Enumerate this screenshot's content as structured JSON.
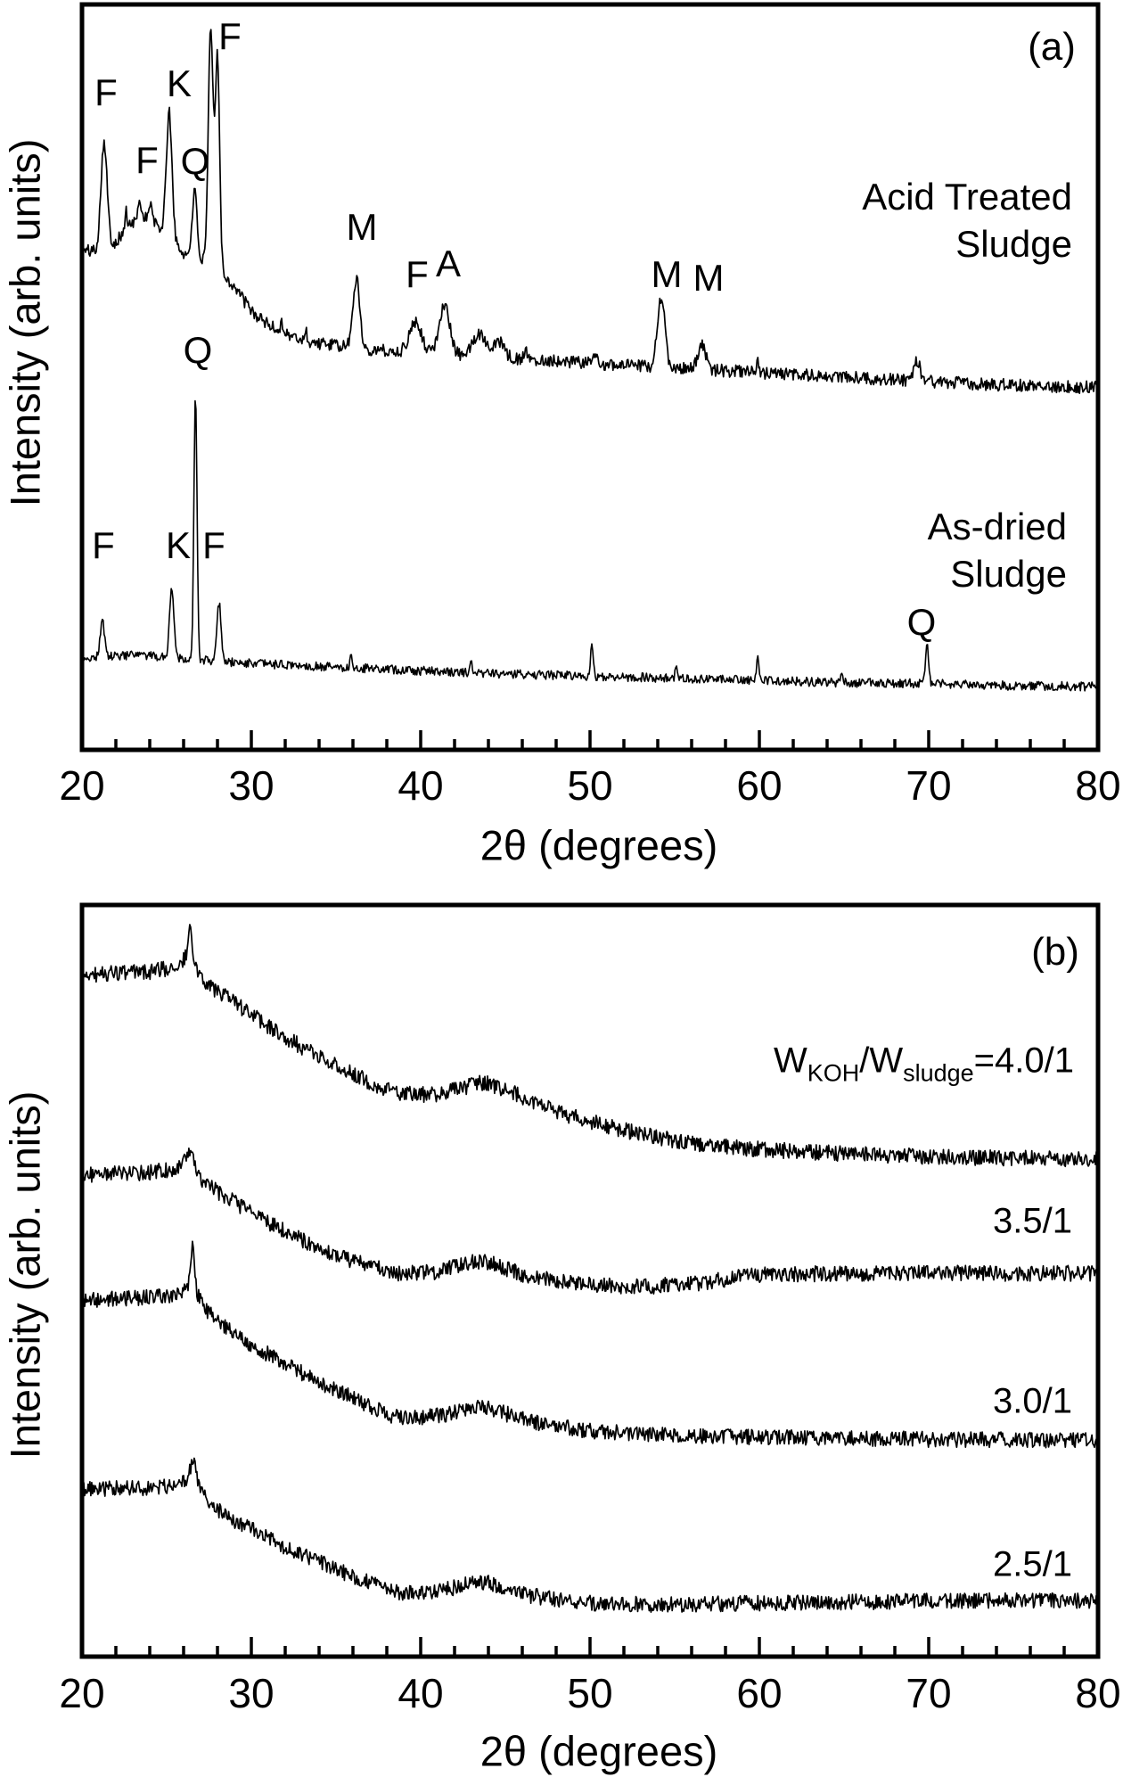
{
  "chart_data": [
    {
      "type": "line",
      "panel": "a",
      "tag": "(a)",
      "xlabel": "2θ (degrees)",
      "ylabel": "Intensity (arb. units)",
      "xlim": [
        20,
        80
      ],
      "x_ticks": [
        20,
        30,
        40,
        50,
        60,
        70,
        80
      ],
      "x_tick_labels": [
        "20",
        "30",
        "40",
        "50",
        "60",
        "70",
        "80"
      ],
      "x_minor_tick_step": 2,
      "ylim": [
        0,
        100
      ],
      "y_units": "arbitrary intensity (0-100 of panel height)",
      "grid": false,
      "legend_position": "labels beside traces",
      "series": [
        {
          "name": "Acid Treated Sludge",
          "label_lines": [
            "Acid Treated",
            "Sludge"
          ],
          "noise": 0.85,
          "seed": 101,
          "baseline": [
            [
              20,
              66.9
            ],
            [
              21.3,
              67.1
            ],
            [
              22,
              68.1
            ],
            [
              23,
              70.1
            ],
            [
              23.8,
              70.7
            ],
            [
              24.5,
              69.3
            ],
            [
              25.2,
              68.1
            ],
            [
              26,
              66.5
            ],
            [
              26.7,
              65.7
            ],
            [
              27.7,
              65.0
            ],
            [
              29,
              62.3
            ],
            [
              30,
              58.7
            ],
            [
              31.5,
              56.3
            ],
            [
              33,
              54.9
            ],
            [
              35,
              54.2
            ],
            [
              38,
              53.5
            ],
            [
              42,
              53.0
            ],
            [
              45,
              52.6
            ],
            [
              48,
              52.2
            ],
            [
              52,
              51.6
            ],
            [
              56,
              51.1
            ],
            [
              60,
              50.6
            ],
            [
              65,
              50.0
            ],
            [
              70,
              49.4
            ],
            [
              75,
              48.9
            ],
            [
              80,
              48.6
            ]
          ],
          "peaks": [
            {
              "x": 21.3,
              "h": 14.4,
              "w": 0.18,
              "label": "F"
            },
            {
              "x": 23.8,
              "h": 1.2,
              "w": 0.8,
              "label": "F"
            },
            {
              "x": 25.15,
              "h": 17.0,
              "w": 0.17,
              "label": "K"
            },
            {
              "x": 26.65,
              "h": 9.0,
              "w": 0.15,
              "label": "Q"
            },
            {
              "x": 27.6,
              "h": 31.7,
              "w": 0.14,
              "label": "F"
            },
            {
              "x": 28.0,
              "h": 28.7,
              "w": 0.13,
              "label": ""
            },
            {
              "x": 36.2,
              "h": 9.3,
              "w": 0.2,
              "label": "M"
            },
            {
              "x": 39.7,
              "h": 4.2,
              "w": 0.35,
              "label": "F"
            },
            {
              "x": 41.4,
              "h": 6.8,
              "w": 0.3,
              "label": "A"
            },
            {
              "x": 43.5,
              "h": 3.0,
              "w": 0.4,
              "label": ""
            },
            {
              "x": 44.6,
              "h": 2.2,
              "w": 0.3,
              "label": ""
            },
            {
              "x": 54.2,
              "h": 9.3,
              "w": 0.22,
              "label": "M"
            },
            {
              "x": 56.6,
              "h": 3.5,
              "w": 0.22,
              "label": "M"
            },
            {
              "x": 69.3,
              "h": 2.6,
              "w": 0.2,
              "label": ""
            },
            {
              "x": 22.6,
              "h": 2.5,
              "w": 0.07,
              "label": ""
            },
            {
              "x": 23.4,
              "h": 2.8,
              "w": 0.07,
              "label": ""
            },
            {
              "x": 24.05,
              "h": 2.2,
              "w": 0.07,
              "label": ""
            },
            {
              "x": 31.8,
              "h": 1.6,
              "w": 0.07,
              "label": ""
            },
            {
              "x": 33.2,
              "h": 1.5,
              "w": 0.07,
              "label": ""
            },
            {
              "x": 46.2,
              "h": 1.2,
              "w": 0.08,
              "label": ""
            },
            {
              "x": 50.3,
              "h": 1.5,
              "w": 0.08,
              "label": ""
            },
            {
              "x": 59.9,
              "h": 1.3,
              "w": 0.08,
              "label": ""
            }
          ]
        },
        {
          "name": "As-dried Sludge",
          "label_lines": [
            "As-dried",
            "Sludge"
          ],
          "noise": 0.6,
          "seed": 202,
          "baseline": [
            [
              20,
              12.3
            ],
            [
              23,
              12.7
            ],
            [
              26,
              12.3
            ],
            [
              28,
              11.8
            ],
            [
              30,
              11.6
            ],
            [
              35,
              11.1
            ],
            [
              40,
              10.6
            ],
            [
              45,
              10.2
            ],
            [
              50,
              9.9
            ],
            [
              55,
              9.6
            ],
            [
              60,
              9.3
            ],
            [
              65,
              9.0
            ],
            [
              70,
              8.9
            ],
            [
              75,
              8.6
            ],
            [
              80,
              8.5
            ]
          ],
          "peaks": [
            {
              "x": 21.2,
              "h": 5.1,
              "w": 0.12,
              "label": "F"
            },
            {
              "x": 25.3,
              "h": 9.2,
              "w": 0.13,
              "label": "K"
            },
            {
              "x": 26.7,
              "h": 35.5,
              "w": 0.09,
              "label": "Q"
            },
            {
              "x": 28.1,
              "h": 8.0,
              "w": 0.12,
              "label": "F"
            },
            {
              "x": 50.1,
              "h": 3.9,
              "w": 0.08,
              "label": ""
            },
            {
              "x": 59.9,
              "h": 3.0,
              "w": 0.08,
              "label": ""
            },
            {
              "x": 69.9,
              "h": 5.0,
              "w": 0.09,
              "label": "Q"
            },
            {
              "x": 35.9,
              "h": 1.6,
              "w": 0.07,
              "label": ""
            },
            {
              "x": 43.0,
              "h": 1.2,
              "w": 0.07,
              "label": ""
            },
            {
              "x": 55.1,
              "h": 1.4,
              "w": 0.07,
              "label": ""
            },
            {
              "x": 64.9,
              "h": 1.2,
              "w": 0.07,
              "label": ""
            }
          ]
        }
      ]
    },
    {
      "type": "line",
      "panel": "b",
      "tag": "(b)",
      "xlabel": "2θ (degrees)",
      "ylabel": "Intensity (arb. units)",
      "xlim": [
        20,
        80
      ],
      "x_ticks": [
        20,
        30,
        40,
        50,
        60,
        70,
        80
      ],
      "x_tick_labels": [
        "20",
        "30",
        "40",
        "50",
        "60",
        "70",
        "80"
      ],
      "x_minor_tick_step": 2,
      "ylim": [
        0,
        100
      ],
      "y_units": "arbitrary intensity (0-100 of panel height)",
      "grid": false,
      "legend_position": "labels beside traces",
      "series": [
        {
          "name": "W_KOH/W_sludge = 4.0/1",
          "ratio": "4.0/1",
          "label_parts": {
            "w1": "W",
            "sub1": "KOH",
            "w2": "/W",
            "sub2": "sludge",
            "eq": "=4.0/1"
          },
          "noise": 1.05,
          "seed": 303,
          "baseline": [
            [
              20,
              90.7
            ],
            [
              24,
              91.1
            ],
            [
              26.3,
              92.1
            ],
            [
              27.2,
              89.9
            ],
            [
              28,
              88.5
            ],
            [
              30,
              85.4
            ],
            [
              32,
              82.4
            ],
            [
              34,
              79.8
            ],
            [
              36,
              77.5
            ],
            [
              38.5,
              74.9
            ],
            [
              41,
              74.7
            ],
            [
              43.7,
              76.5
            ],
            [
              46,
              74.5
            ],
            [
              48,
              72.5
            ],
            [
              50,
              71.2
            ],
            [
              53,
              69.5
            ],
            [
              56,
              68.3
            ],
            [
              60,
              67.5
            ],
            [
              65,
              66.9
            ],
            [
              70,
              66.5
            ],
            [
              75,
              66.3
            ],
            [
              80,
              66.2
            ]
          ],
          "peaks": [
            {
              "x": 26.35,
              "h": 2.2,
              "w": 0.25,
              "label": ""
            },
            {
              "x": 26.4,
              "h": 3.3,
              "w": 0.07,
              "label": ""
            }
          ]
        },
        {
          "name": "3.5/1",
          "ratio": "3.5/1",
          "noise": 1.05,
          "seed": 404,
          "baseline": [
            [
              20,
              64.1
            ],
            [
              24,
              64.4
            ],
            [
              26.3,
              65.2
            ],
            [
              27.2,
              63.2
            ],
            [
              28,
              61.8
            ],
            [
              30,
              59.1
            ],
            [
              32,
              56.5
            ],
            [
              34,
              54.3
            ],
            [
              36,
              52.6
            ],
            [
              38.5,
              51.0
            ],
            [
              41,
              51.2
            ],
            [
              43.7,
              52.8
            ],
            [
              46,
              50.8
            ],
            [
              48,
              49.9
            ],
            [
              50,
              49.4
            ],
            [
              53,
              49.2
            ],
            [
              56,
              49.6
            ],
            [
              60,
              50.8
            ],
            [
              65,
              51.0
            ],
            [
              70,
              51.0
            ],
            [
              75,
              51.0
            ],
            [
              80,
              51.0
            ]
          ],
          "peaks": [
            {
              "x": 26.35,
              "h": 1.6,
              "w": 0.25,
              "label": ""
            },
            {
              "x": 26.45,
              "h": 2.1,
              "w": 0.07,
              "label": ""
            }
          ]
        },
        {
          "name": "3.0/1",
          "ratio": "3.0/1",
          "noise": 1.05,
          "seed": 505,
          "baseline": [
            [
              20,
              47.4
            ],
            [
              24,
              47.8
            ],
            [
              26.5,
              48.2
            ],
            [
              27.2,
              46.3
            ],
            [
              28,
              44.6
            ],
            [
              30,
              41.5
            ],
            [
              32,
              38.9
            ],
            [
              34,
              36.5
            ],
            [
              36,
              34.4
            ],
            [
              38.5,
              31.8
            ],
            [
              41,
              32.0
            ],
            [
              43.7,
              33.3
            ],
            [
              46,
              31.6
            ],
            [
              48,
              30.6
            ],
            [
              50,
              30.0
            ],
            [
              55,
              29.4
            ],
            [
              60,
              29.2
            ],
            [
              70,
              28.9
            ],
            [
              80,
              28.8
            ]
          ],
          "peaks": [
            {
              "x": 26.5,
              "h": 1.8,
              "w": 0.3,
              "label": ""
            },
            {
              "x": 26.55,
              "h": 5.3,
              "w": 0.09,
              "label": ""
            }
          ]
        },
        {
          "name": "2.5/1",
          "ratio": "2.5/1",
          "noise": 1.05,
          "seed": 606,
          "baseline": [
            [
              20,
              22.3
            ],
            [
              24,
              22.5
            ],
            [
              26.5,
              22.9
            ],
            [
              27.5,
              20.5
            ],
            [
              28.5,
              18.7
            ],
            [
              30,
              17.0
            ],
            [
              32,
              14.6
            ],
            [
              34,
              12.6
            ],
            [
              36,
              10.7
            ],
            [
              38.5,
              8.5
            ],
            [
              41,
              8.7
            ],
            [
              43.7,
              10.1
            ],
            [
              46,
              8.3
            ],
            [
              48,
              7.6
            ],
            [
              50,
              7.1
            ],
            [
              55,
              6.9
            ],
            [
              60,
              7.1
            ],
            [
              70,
              7.4
            ],
            [
              80,
              7.5
            ]
          ],
          "peaks": [
            {
              "x": 26.5,
              "h": 2.4,
              "w": 0.25,
              "label": ""
            },
            {
              "x": 26.6,
              "h": 1.8,
              "w": 0.08,
              "label": ""
            }
          ]
        }
      ]
    }
  ]
}
